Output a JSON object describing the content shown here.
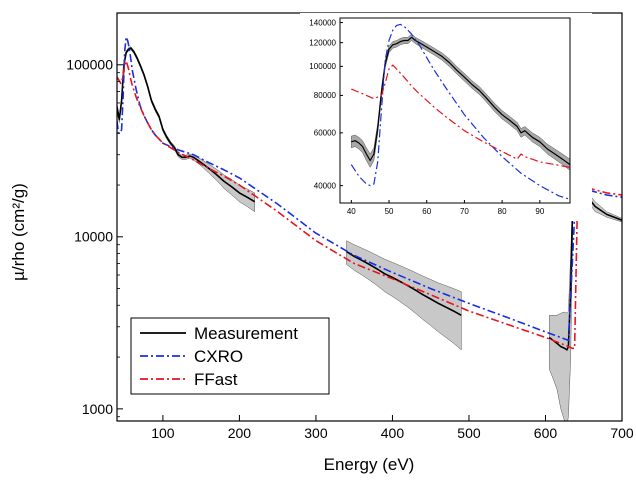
{
  "chart_data": [
    {
      "id": "main",
      "type": "line",
      "xlabel": "Energy (eV)",
      "ylabel": "µ/rho (cm²/g)",
      "yscale": "log",
      "xlim": [
        40,
        700
      ],
      "ylim": [
        850,
        200000
      ],
      "grid": false,
      "legend_position": "bottom-left",
      "x_ticks": [
        {
          "value": 100,
          "label": "100"
        },
        {
          "value": 200,
          "label": "200"
        },
        {
          "value": 300,
          "label": "300"
        },
        {
          "value": 400,
          "label": "400"
        },
        {
          "value": 500,
          "label": "500"
        },
        {
          "value": 600,
          "label": "600"
        },
        {
          "value": 700,
          "label": "700"
        }
      ],
      "y_ticks": [
        {
          "value": 1000,
          "label": "1000"
        },
        {
          "value": 10000,
          "label": "10000"
        },
        {
          "value": 100000,
          "label": "100000"
        }
      ],
      "series": [
        {
          "name": "Measurement",
          "color": "#000000",
          "dash": "solid",
          "uncertainty_fill": "#c8c8c8",
          "segments": [
            {
              "x": [
                40,
                43,
                46,
                49,
                52,
                55,
                58,
                62,
                66,
                70,
                75,
                80,
                85,
                90,
                95,
                100,
                105,
                110,
                115,
                120,
                125,
                130,
                135,
                140,
                150,
                160,
                170,
                180,
                190,
                200,
                210,
                220
              ],
              "y": [
                57000,
                48000,
                62000,
                100000,
                118000,
                123000,
                125000,
                119000,
                110000,
                100000,
                88000,
                75000,
                62000,
                55000,
                50000,
                42000,
                38000,
                35000,
                33000,
                30000,
                29000,
                29000,
                29500,
                29000,
                27000,
                25000,
                23000,
                21000,
                19500,
                18000,
                17000,
                16000
              ],
              "band": [
                2000,
                2000,
                2000,
                2500,
                2500,
                2500,
                2500,
                2500,
                2500,
                2300,
                2000,
                1800,
                1500,
                1300,
                1200,
                1000,
                900,
                800,
                800,
                800,
                800,
                800,
                800,
                1000,
                1200,
                1500,
                1700,
                1900,
                2000,
                2000,
                2000,
                2000
              ]
            },
            {
              "x": [
                340,
                350,
                360,
                370,
                380,
                390,
                400,
                410,
                420,
                430,
                440,
                450,
                460,
                470,
                480,
                490
              ],
              "y": [
                8200,
                7700,
                7300,
                6900,
                6500,
                6100,
                5800,
                5500,
                5200,
                4900,
                4600,
                4350,
                4100,
                3900,
                3700,
                3500
              ],
              "band": [
                1300,
                1300,
                1300,
                1300,
                1300,
                1300,
                1300,
                1300,
                1300,
                1300,
                1300,
                1300,
                1300,
                1300,
                1300,
                1300
              ]
            },
            {
              "x": [
                605,
                610,
                615,
                620,
                625,
                628,
                630,
                633,
                636,
                639,
                642,
                645,
                648,
                651,
                655,
                660,
                665,
                670,
                680,
                690,
                700
              ],
              "y": [
                2600,
                2500,
                2400,
                2300,
                2250,
                2200,
                2300,
                5000,
                18000,
                32000,
                22000,
                19000,
                21000,
                24000,
                19000,
                16000,
                15000,
                14500,
                13500,
                13000,
                12500
              ],
              "band": [
                900,
                1000,
                1100,
                1300,
                1400,
                1400,
                1400,
                3000,
                3000,
                3000,
                2000,
                1500,
                1500,
                1500,
                1200,
                1000,
                1000,
                800,
                500,
                400,
                300
              ]
            }
          ]
        },
        {
          "name": "CXRO",
          "color": "#1a2ee0",
          "dash": "dashdot",
          "x": [
            40,
            42,
            44,
            46,
            48,
            50,
            52,
            54,
            56,
            58,
            60,
            65,
            70,
            75,
            80,
            85,
            90,
            95,
            100,
            120,
            140,
            160,
            180,
            200,
            250,
            300,
            350,
            400,
            450,
            500,
            550,
            600,
            620,
            630,
            635,
            640,
            650,
            660,
            680,
            700
          ],
          "y": [
            47000,
            40000,
            40000,
            42000,
            65000,
            120000,
            145000,
            138000,
            125000,
            108000,
            93000,
            72000,
            58000,
            51000,
            46000,
            42000,
            39000,
            37000,
            35000,
            32000,
            30000,
            27000,
            24500,
            22000,
            15500,
            10500,
            7800,
            6200,
            5000,
            4100,
            3400,
            2800,
            2600,
            2500,
            7000,
            20000,
            19000,
            18500,
            17500,
            17000
          ]
        },
        {
          "name": "FFast",
          "color": "#e8141e",
          "dash": "dashdot",
          "x": [
            40,
            45,
            48,
            50,
            52,
            55,
            58,
            60,
            65,
            70,
            75,
            80,
            85,
            90,
            95,
            100,
            120,
            140,
            160,
            180,
            200,
            250,
            300,
            350,
            400,
            450,
            500,
            550,
            600,
            620,
            630,
            635,
            638,
            642,
            650,
            660,
            680,
            700
          ],
          "y": [
            85000,
            78000,
            85000,
            100000,
            105000,
            95000,
            82000,
            76000,
            65000,
            57000,
            51000,
            46000,
            42000,
            39000,
            37000,
            35000,
            31000,
            28000,
            25000,
            22500,
            20000,
            14000,
            9500,
            7000,
            5700,
            4600,
            3700,
            3100,
            2600,
            2400,
            2300,
            2250,
            2250,
            18000,
            19500,
            19000,
            18000,
            17500
          ]
        }
      ]
    },
    {
      "id": "inset",
      "type": "line",
      "xlabel": "",
      "ylabel": "",
      "yscale": "log",
      "xlim": [
        37,
        98
      ],
      "ylim": [
        35000,
        145000
      ],
      "grid": false,
      "x_ticks": [
        {
          "value": 40,
          "label": "40"
        },
        {
          "value": 50,
          "label": "50"
        },
        {
          "value": 60,
          "label": "60"
        },
        {
          "value": 70,
          "label": "70"
        },
        {
          "value": 80,
          "label": "80"
        },
        {
          "value": 90,
          "label": "90"
        }
      ],
      "y_ticks": [
        {
          "value": 40000,
          "label": "40000"
        },
        {
          "value": 60000,
          "label": "60000"
        },
        {
          "value": 80000,
          "label": "80000"
        },
        {
          "value": 100000,
          "label": "100000"
        },
        {
          "value": 120000,
          "label": "120000"
        },
        {
          "value": 140000,
          "label": "140000"
        }
      ],
      "series": [
        {
          "name": "Measurement",
          "color": "#000000",
          "dash": "solid",
          "uncertainty_fill": "#a8a8a8",
          "x": [
            40,
            41,
            42,
            43,
            44,
            45,
            46,
            47,
            48,
            49,
            50,
            51,
            52,
            53,
            54,
            55,
            56,
            57,
            58,
            60,
            62,
            64,
            66,
            68,
            70,
            72,
            74,
            76,
            78,
            80,
            82,
            84,
            85,
            86,
            88,
            90,
            92,
            94,
            96,
            98
          ],
          "y": [
            56000,
            56500,
            55500,
            54000,
            51000,
            48500,
            51000,
            62000,
            82000,
            102000,
            114000,
            118000,
            119000,
            121000,
            122000,
            122000,
            125000,
            122000,
            120000,
            116000,
            112000,
            108000,
            103000,
            97000,
            92000,
            87000,
            83000,
            78000,
            73000,
            69000,
            66000,
            63000,
            60000,
            61000,
            58000,
            56000,
            53000,
            51000,
            49000,
            47000
          ],
          "band": [
            2500,
            2500,
            2500,
            2500,
            2500,
            2500,
            2500,
            2500,
            3000,
            3000,
            3000,
            3000,
            3000,
            3000,
            3000,
            3000,
            3000,
            3000,
            3000,
            3000,
            3000,
            3000,
            3000,
            2800,
            2700,
            2600,
            2500,
            2400,
            2300,
            2200,
            2100,
            2000,
            2000,
            2000,
            2000,
            2000,
            2000,
            2000,
            2000,
            2000
          ]
        },
        {
          "name": "CXRO",
          "color": "#1a2ee0",
          "dash": "dashdot",
          "x": [
            40,
            42,
            44,
            45,
            46,
            47,
            48,
            49,
            50,
            51,
            52,
            53,
            54,
            55,
            56,
            58,
            60,
            62,
            65,
            68,
            70,
            75,
            80,
            85,
            90,
            95,
            98
          ],
          "y": [
            47000,
            43000,
            40500,
            40000,
            40500,
            48000,
            72000,
            105000,
            122000,
            132000,
            137000,
            138000,
            136000,
            132000,
            128000,
            118000,
            107000,
            97000,
            85000,
            75000,
            69000,
            58000,
            50000,
            44000,
            40000,
            37000,
            36000
          ]
        },
        {
          "name": "FFast",
          "color": "#e8141e",
          "dash": "dashdot",
          "x": [
            40,
            42,
            44,
            46,
            48,
            49,
            50,
            51,
            52,
            54,
            56,
            58,
            60,
            62,
            65,
            70,
            75,
            80,
            84,
            85,
            86,
            88,
            90,
            94,
            98
          ],
          "y": [
            84000,
            82000,
            80000,
            78000,
            80000,
            88000,
            98000,
            101000,
            98000,
            92000,
            86000,
            81000,
            77000,
            73000,
            68000,
            61000,
            56000,
            52000,
            49000,
            51000,
            50000,
            49000,
            48000,
            47000,
            46000
          ]
        }
      ]
    }
  ]
}
